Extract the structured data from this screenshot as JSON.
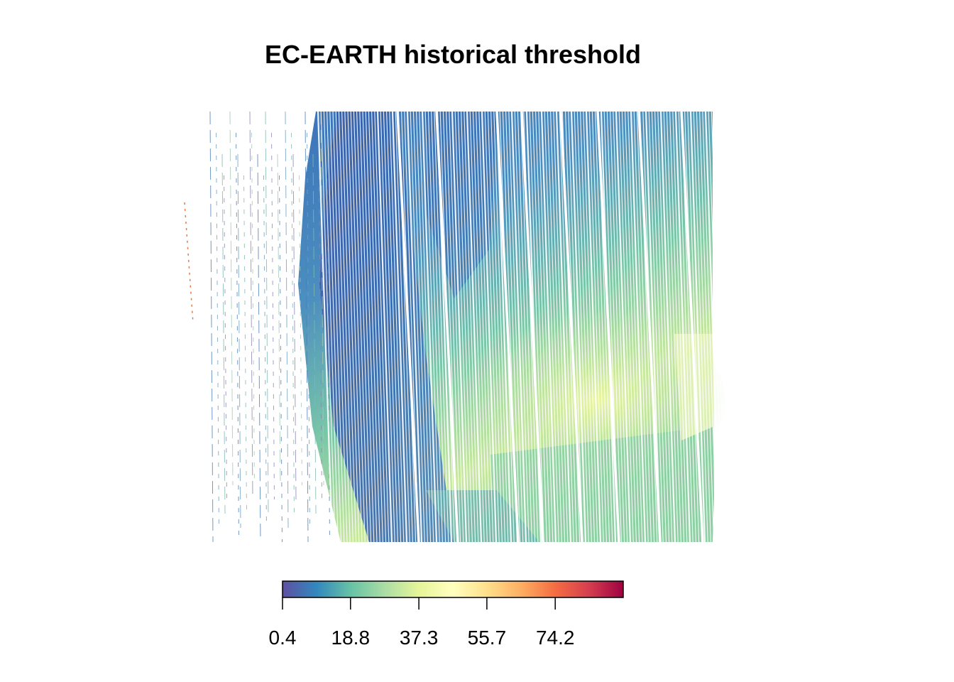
{
  "title": "EC-EARTH historical threshold",
  "colorbar": {
    "ticks": [
      "0.4",
      "18.8",
      "37.3",
      "55.7",
      "74.2"
    ],
    "tick_values": [
      0.4,
      18.8,
      37.3,
      55.7,
      74.2
    ],
    "range": [
      0.4,
      92.6
    ],
    "palette": [
      "#5E4FA2",
      "#3288BD",
      "#66C2A5",
      "#ABDDA4",
      "#E6F598",
      "#FFFFBF",
      "#FEE08B",
      "#FDAE61",
      "#F46D43",
      "#D53E4F",
      "#9E0142"
    ]
  },
  "map": {
    "dominant_colors": {
      "low": "#3F6FB5",
      "mid": "#74C6A6",
      "high": "#E8F59A"
    }
  }
}
